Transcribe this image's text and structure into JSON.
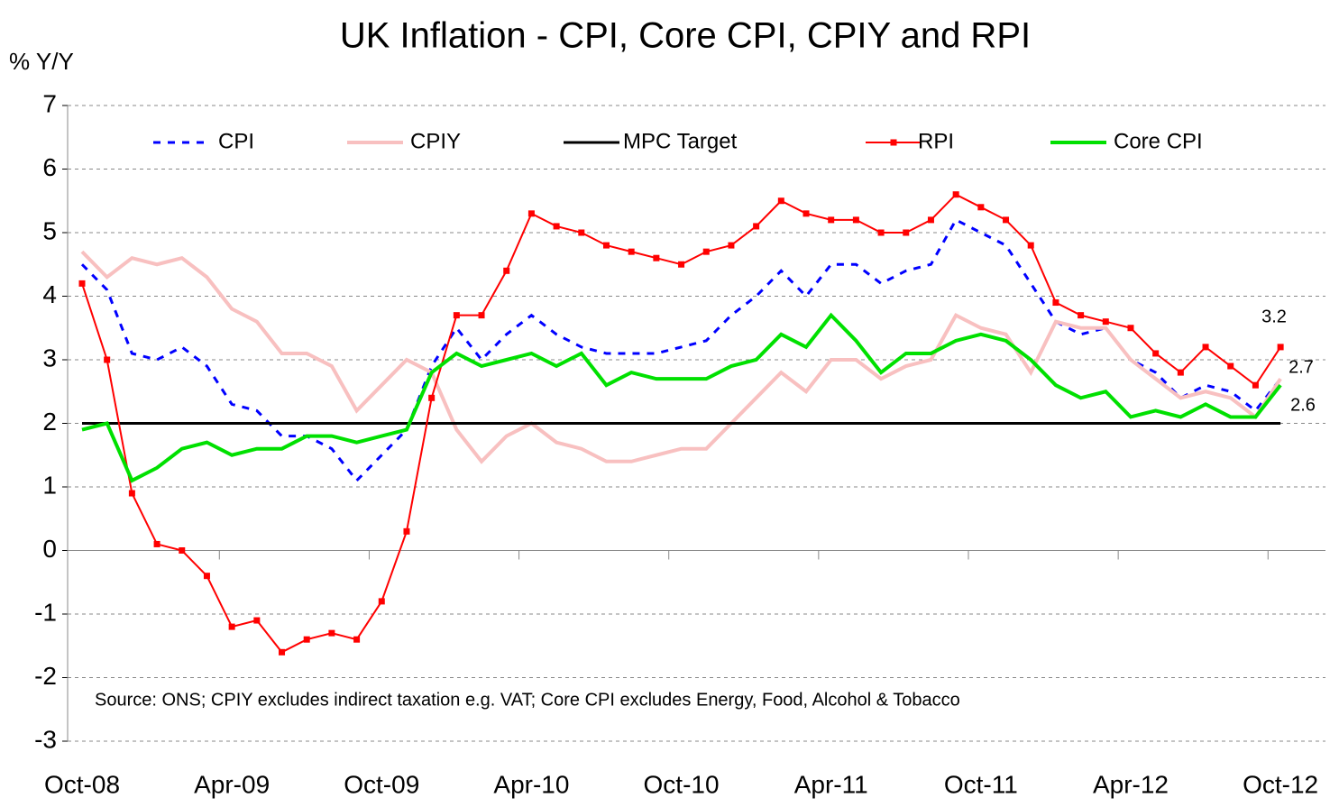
{
  "chart_data": {
    "type": "line",
    "title": "UK Inflation - CPI, Core CPI, CPIY and RPI",
    "y_axis_label": "% Y/Y",
    "note": "Source: ONS; CPIY excludes indirect taxation e.g. VAT; Core CPI excludes Energy, Food, Alcohol & Tobacco",
    "categories": [
      "Oct-08",
      null,
      null,
      null,
      null,
      null,
      "Apr-09",
      null,
      null,
      null,
      null,
      null,
      "Oct-09",
      null,
      null,
      null,
      null,
      null,
      "Apr-10",
      null,
      null,
      null,
      null,
      null,
      "Oct-10",
      null,
      null,
      null,
      null,
      null,
      "Apr-11",
      null,
      null,
      null,
      null,
      null,
      "Oct-11",
      null,
      null,
      null,
      null,
      null,
      "Apr-12",
      null,
      null,
      null,
      null,
      null,
      "Oct-12"
    ],
    "ylim": [
      -3,
      7
    ],
    "yticks": [
      -3,
      -2,
      -1,
      0,
      1,
      2,
      3,
      4,
      5,
      6,
      7
    ],
    "grid": true,
    "series": [
      {
        "name": "CPI",
        "color": "#0000ff",
        "dash": true,
        "values": [
          4.5,
          4.1,
          3.1,
          3.0,
          3.2,
          2.9,
          2.3,
          2.2,
          1.8,
          1.8,
          1.6,
          1.1,
          1.5,
          1.9,
          2.9,
          3.5,
          3.0,
          3.4,
          3.7,
          3.4,
          3.2,
          3.1,
          3.1,
          3.1,
          3.2,
          3.3,
          3.7,
          4.0,
          4.4,
          4.0,
          4.5,
          4.5,
          4.2,
          4.4,
          4.5,
          5.2,
          5.0,
          4.8,
          4.2,
          3.6,
          3.4,
          3.5,
          3.0,
          2.8,
          2.4,
          2.6,
          2.5,
          2.2,
          2.7
        ]
      },
      {
        "name": "CPIY",
        "color": "#f8c0c0",
        "values": [
          4.7,
          4.3,
          4.6,
          4.5,
          4.6,
          4.3,
          3.8,
          3.6,
          3.1,
          3.1,
          2.9,
          2.2,
          2.6,
          3.0,
          2.8,
          1.9,
          1.4,
          1.8,
          2.0,
          1.7,
          1.6,
          1.4,
          1.4,
          1.5,
          1.6,
          1.6,
          2.0,
          2.4,
          2.8,
          2.5,
          3.0,
          3.0,
          2.7,
          2.9,
          3.0,
          3.7,
          3.5,
          3.4,
          2.8,
          3.6,
          3.5,
          3.5,
          3.0,
          2.7,
          2.4,
          2.5,
          2.4,
          2.1,
          2.7
        ]
      },
      {
        "name": "MPC Target",
        "color": "#000000",
        "values": [
          2,
          2,
          2,
          2,
          2,
          2,
          2,
          2,
          2,
          2,
          2,
          2,
          2,
          2,
          2,
          2,
          2,
          2,
          2,
          2,
          2,
          2,
          2,
          2,
          2,
          2,
          2,
          2,
          2,
          2,
          2,
          2,
          2,
          2,
          2,
          2,
          2,
          2,
          2,
          2,
          2,
          2,
          2,
          2,
          2,
          2,
          2,
          2,
          2
        ]
      },
      {
        "name": "RPI",
        "color": "#ff0000",
        "markers": true,
        "values": [
          4.2,
          3.0,
          0.9,
          0.1,
          0.0,
          -0.4,
          -1.2,
          -1.1,
          -1.6,
          -1.4,
          -1.3,
          -1.4,
          -0.8,
          0.3,
          2.4,
          3.7,
          3.7,
          4.4,
          5.3,
          5.1,
          5.0,
          4.8,
          4.7,
          4.6,
          4.5,
          4.7,
          4.8,
          5.1,
          5.5,
          5.3,
          5.2,
          5.2,
          5.0,
          5.0,
          5.2,
          5.6,
          5.4,
          5.2,
          4.8,
          3.9,
          3.7,
          3.6,
          3.5,
          3.1,
          2.8,
          3.2,
          2.9,
          2.6,
          3.2
        ]
      },
      {
        "name": "Core CPI",
        "color": "#00e000",
        "values": [
          1.9,
          2.0,
          1.1,
          1.3,
          1.6,
          1.7,
          1.5,
          1.6,
          1.6,
          1.8,
          1.8,
          1.7,
          1.8,
          1.9,
          2.8,
          3.1,
          2.9,
          3.0,
          3.1,
          2.9,
          3.1,
          2.6,
          2.8,
          2.7,
          2.7,
          2.7,
          2.9,
          3.0,
          3.4,
          3.2,
          3.7,
          3.3,
          2.8,
          3.1,
          3.1,
          3.3,
          3.4,
          3.3,
          3.0,
          2.6,
          2.4,
          2.5,
          2.1,
          2.2,
          2.1,
          2.3,
          2.1,
          2.1,
          2.6
        ]
      }
    ],
    "annotations": [
      "3.2",
      "2.7",
      "2.6"
    ]
  }
}
